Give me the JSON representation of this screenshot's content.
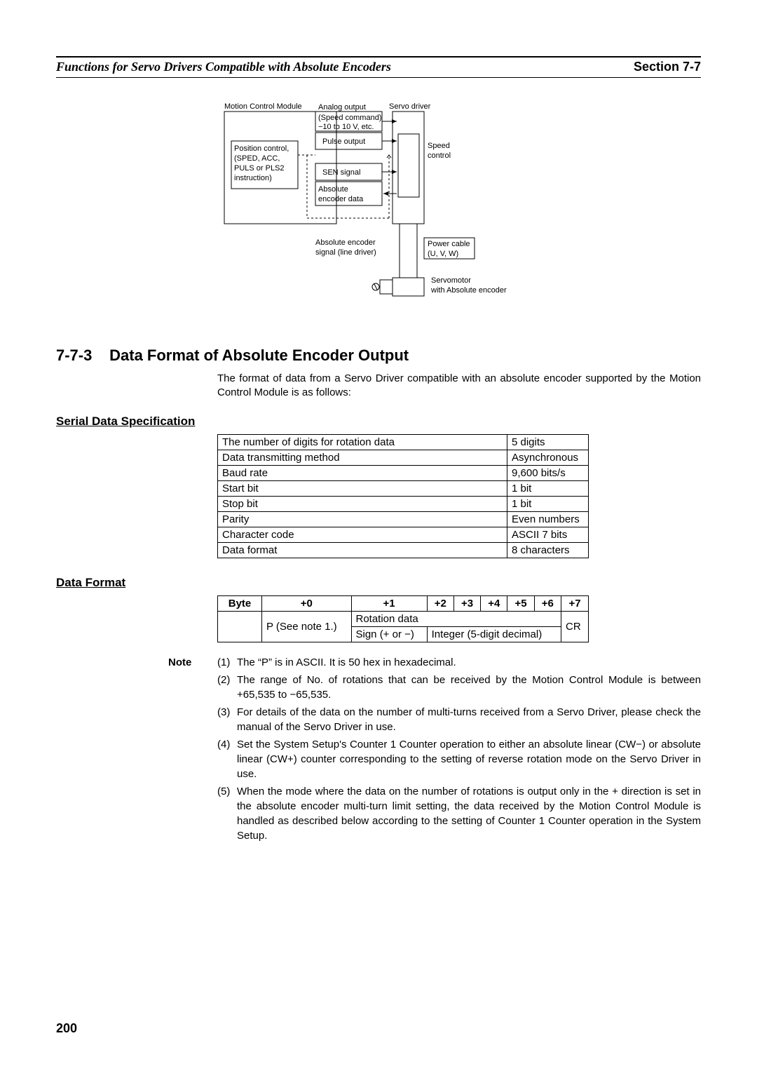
{
  "header": {
    "left": "Functions for Servo Drivers Compatible with Absolute Encoders",
    "right": "Section 7-7"
  },
  "diagram": {
    "motion_label": "Motion Control Module",
    "analog_output": "Analog output",
    "speed_command": "(Speed command)",
    "voltage_range": "−10 to 10 V, etc.",
    "pulse_output": "Pulse output",
    "sen_signal": "SEN signal",
    "abs_enc_data_1": "Absolute",
    "abs_enc_data_2": "encoder data",
    "position_control_1": "Position control,",
    "position_control_2": "(SPED, ACC,",
    "position_control_3": "PULS or PLS2",
    "position_control_4": "instruction)",
    "servo_driver": "Servo driver",
    "speed_control_1": "Speed",
    "speed_control_2": "control",
    "abs_enc_sig_1": "Absolute encoder",
    "abs_enc_sig_2": "signal (line driver)",
    "power_cable_1": "Power cable",
    "power_cable_2": "(U, V, W)",
    "servomotor_1": "Servomotor",
    "servomotor_2": "with Absolute encoder"
  },
  "section": {
    "number": "7-7-3",
    "title": "Data Format of Absolute Encoder Output",
    "intro": "The format of data from a Servo Driver compatible with an absolute encoder supported by the Motion Control Module is as follows:"
  },
  "serial_spec": {
    "heading": "Serial Data Specification",
    "rows": [
      [
        "The number of digits for rotation data",
        "5 digits"
      ],
      [
        "Data transmitting method",
        "Asynchronous"
      ],
      [
        "Baud rate",
        "9,600 bits/s"
      ],
      [
        "Start bit",
        "1 bit"
      ],
      [
        "Stop bit",
        "1 bit"
      ],
      [
        "Parity",
        "Even numbers"
      ],
      [
        "Character code",
        "ASCII 7 bits"
      ],
      [
        "Data format",
        "8 characters"
      ]
    ]
  },
  "data_format": {
    "heading": "Data Format",
    "header": [
      "Byte",
      "+0",
      "+1",
      "+2",
      "+3",
      "+4",
      "+5",
      "+6",
      "+7"
    ],
    "p_see": "P (See note 1.)",
    "rotation_data": "Rotation data",
    "sign": "Sign (+ or −)",
    "integer": "Integer (5-digit decimal)",
    "cr": "CR"
  },
  "notes": {
    "label": "Note",
    "items": [
      {
        "n": "(1)",
        "t": "The “P” is in ASCII. It is 50 hex in hexadecimal."
      },
      {
        "n": "(2)",
        "t": "The range of No. of rotations that can be received by the Motion Control Module is between +65,535 to −65,535."
      },
      {
        "n": "(3)",
        "t": "For details of the data on the number of multi-turns received from a Servo Driver, please check the manual of the Servo Driver in use."
      },
      {
        "n": "(4)",
        "t": "Set the System Setup's Counter 1 Counter operation to either an absolute linear (CW−) or absolute linear (CW+) counter corresponding to the setting of reverse rotation mode on the Servo Driver in use."
      },
      {
        "n": "(5)",
        "t": "When the mode where the data on the number of rotations is output only in the + direction is set in the absolute encoder multi-turn limit setting, the data received by the Motion Control Module is handled as described below according to the setting of Counter 1 Counter operation in the System Setup."
      }
    ]
  },
  "page_number": "200"
}
